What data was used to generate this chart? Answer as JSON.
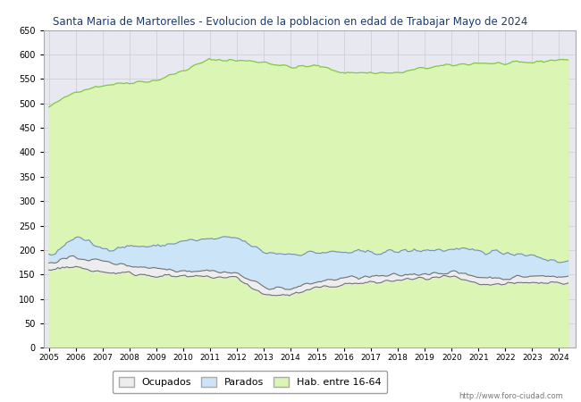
{
  "title": "Santa Maria de Martorelles - Evolucion de la poblacion en edad de Trabajar Mayo de 2024",
  "title_color": "#1a3a6e",
  "ylim": [
    0,
    650
  ],
  "yticks": [
    0,
    50,
    100,
    150,
    200,
    250,
    300,
    350,
    400,
    450,
    500,
    550,
    600,
    650
  ],
  "years": [
    2005,
    2006,
    2007,
    2008,
    2009,
    2010,
    2011,
    2012,
    2013,
    2014,
    2015,
    2016,
    2017,
    2018,
    2019,
    2020,
    2021,
    2022,
    2023,
    2024
  ],
  "hab_16_64": [
    492,
    525,
    537,
    543,
    547,
    567,
    590,
    588,
    585,
    574,
    577,
    563,
    563,
    562,
    573,
    578,
    583,
    581,
    584,
    590
  ],
  "par_upper": [
    185,
    228,
    202,
    208,
    207,
    218,
    222,
    225,
    195,
    192,
    195,
    195,
    195,
    197,
    200,
    200,
    198,
    195,
    190,
    175
  ],
  "par_lower": [
    175,
    185,
    177,
    168,
    163,
    158,
    158,
    152,
    125,
    120,
    135,
    143,
    145,
    148,
    152,
    155,
    145,
    142,
    147,
    145
  ],
  "ocu_lower": [
    162,
    165,
    155,
    152,
    148,
    145,
    145,
    143,
    108,
    108,
    122,
    130,
    133,
    138,
    142,
    145,
    128,
    130,
    133,
    133
  ],
  "noise_seed": 42,
  "color_hab_fill": "#daf5b4",
  "color_hab_line": "#80c840",
  "color_par_fill": "#cce4f8",
  "color_par_line": "#7090b8",
  "color_ocu_fill": "#ededf0",
  "color_ocu_line": "#707070",
  "color_grid": "#d0d0d8",
  "color_plot_bg": "#e8e8f0",
  "watermark": "http://www.foro-ciudad.com",
  "legend_labels": [
    "Ocupados",
    "Parados",
    "Hab. entre 16-64"
  ]
}
